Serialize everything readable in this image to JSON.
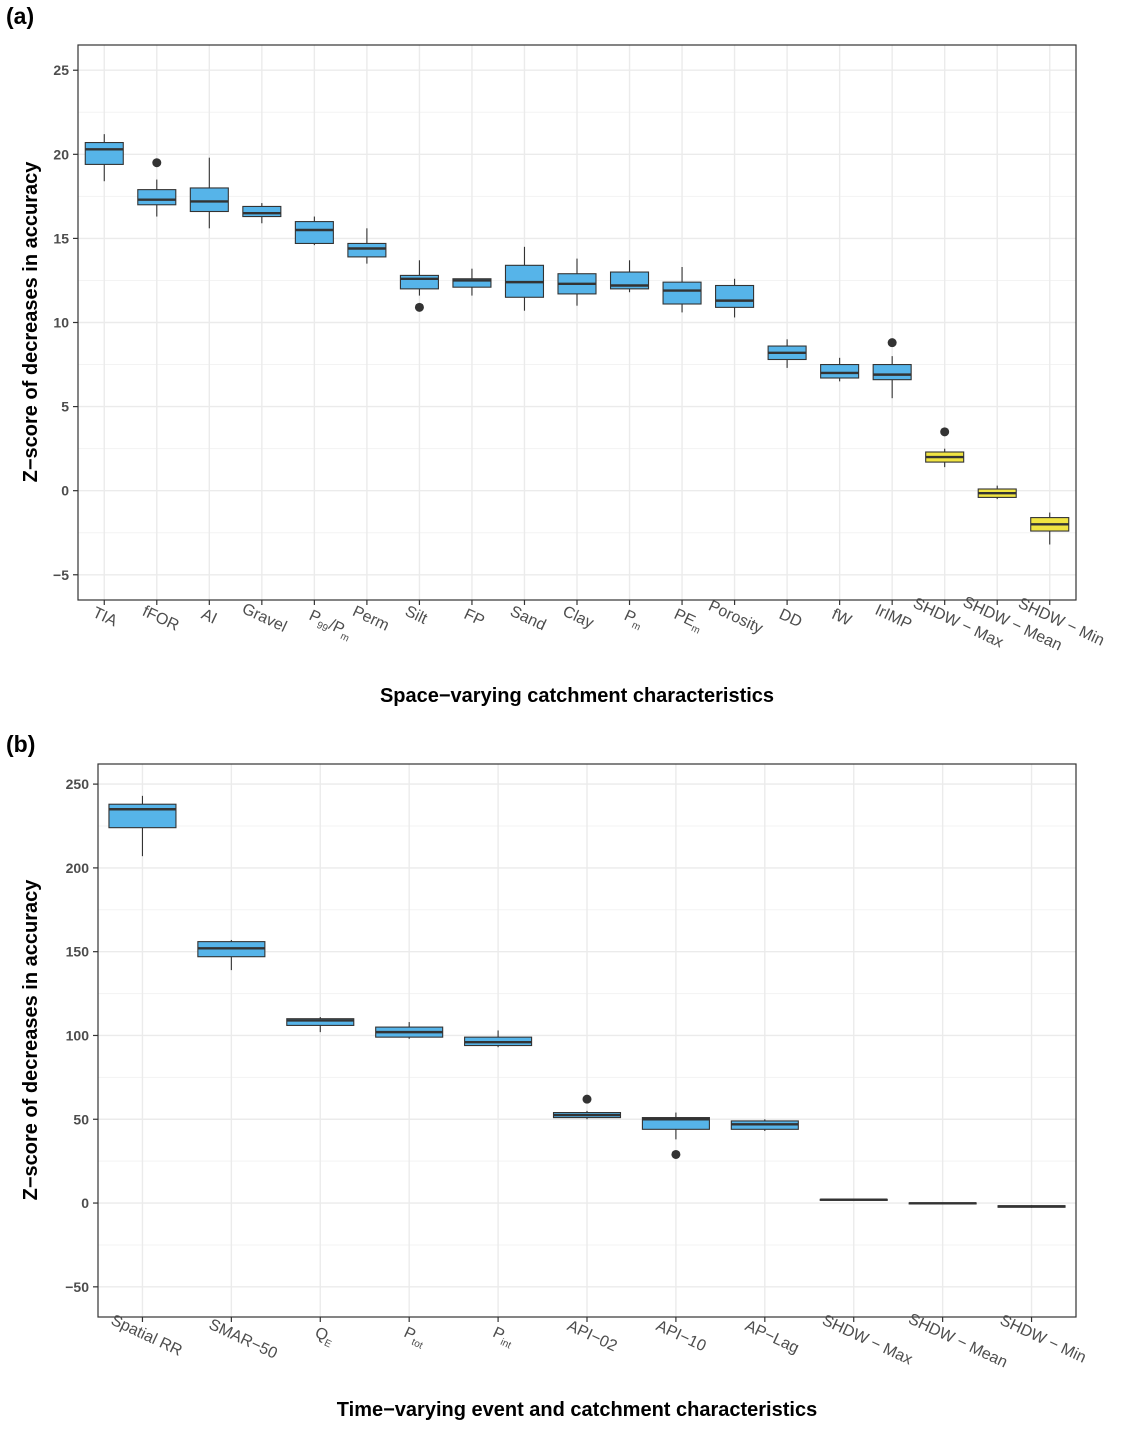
{
  "colors": {
    "box_default": "#56B4E9",
    "box_highlight": "#F0E442",
    "outline": "#333333",
    "grid": "#ebebeb",
    "panel_border": "#333333",
    "tick_text": "#4d4d4d"
  },
  "chart_data": [
    {
      "type": "box",
      "panel_label": "(a)",
      "xlabel": "Space−varying catchment characteristics",
      "ylabel": "Z−score of decreases in accuracy",
      "ylim": [
        -6.5,
        26.5
      ],
      "yticks": [
        -5,
        0,
        5,
        10,
        15,
        20,
        25
      ],
      "ytick_labels": [
        "−5",
        "0",
        "5",
        "10",
        "15",
        "20",
        "25"
      ],
      "grid": true,
      "categories": [
        {
          "label": "TIA"
        },
        {
          "label": "fFOR"
        },
        {
          "label": "AI"
        },
        {
          "label": "Gravel"
        },
        {
          "label": "P",
          "sub": "99",
          "label2": "/P",
          "sub2": "m"
        },
        {
          "label": "Perm"
        },
        {
          "label": "Silt"
        },
        {
          "label": "FP"
        },
        {
          "label": "Sand"
        },
        {
          "label": "Clay"
        },
        {
          "label": "P",
          "sub": "m"
        },
        {
          "label": "PE",
          "sub": "m"
        },
        {
          "label": "Porosity"
        },
        {
          "label": "DD"
        },
        {
          "label": "fW"
        },
        {
          "label": "IrIMP"
        },
        {
          "label": "SHDW − Max"
        },
        {
          "label": "SHDW − Mean"
        },
        {
          "label": "SHDW − Min"
        }
      ],
      "boxes": [
        {
          "min": 18.4,
          "q1": 19.4,
          "median": 20.3,
          "q3": 20.7,
          "max": 21.2,
          "outliers": [],
          "highlight": false
        },
        {
          "min": 16.3,
          "q1": 17.0,
          "median": 17.3,
          "q3": 17.9,
          "max": 18.5,
          "outliers": [
            19.5
          ],
          "highlight": false
        },
        {
          "min": 15.6,
          "q1": 16.6,
          "median": 17.2,
          "q3": 18.0,
          "max": 19.8,
          "outliers": [],
          "highlight": false
        },
        {
          "min": 15.9,
          "q1": 16.3,
          "median": 16.5,
          "q3": 16.9,
          "max": 17.1,
          "outliers": [],
          "highlight": false
        },
        {
          "min": 14.6,
          "q1": 14.7,
          "median": 15.5,
          "q3": 16.0,
          "max": 16.3,
          "outliers": [],
          "highlight": false
        },
        {
          "min": 13.5,
          "q1": 13.9,
          "median": 14.4,
          "q3": 14.7,
          "max": 15.6,
          "outliers": [],
          "highlight": false
        },
        {
          "min": 11.6,
          "q1": 12.0,
          "median": 12.6,
          "q3": 12.8,
          "max": 13.7,
          "outliers": [
            10.9
          ],
          "highlight": false
        },
        {
          "min": 11.6,
          "q1": 12.1,
          "median": 12.5,
          "q3": 12.6,
          "max": 13.2,
          "outliers": [],
          "highlight": false
        },
        {
          "min": 10.7,
          "q1": 11.5,
          "median": 12.4,
          "q3": 13.4,
          "max": 14.5,
          "outliers": [],
          "highlight": false
        },
        {
          "min": 11.0,
          "q1": 11.7,
          "median": 12.3,
          "q3": 12.9,
          "max": 13.8,
          "outliers": [],
          "highlight": false
        },
        {
          "min": 11.8,
          "q1": 12.0,
          "median": 12.2,
          "q3": 13.0,
          "max": 13.7,
          "outliers": [],
          "highlight": false
        },
        {
          "min": 10.6,
          "q1": 11.1,
          "median": 11.9,
          "q3": 12.4,
          "max": 13.3,
          "outliers": [],
          "highlight": false
        },
        {
          "min": 10.3,
          "q1": 10.9,
          "median": 11.3,
          "q3": 12.2,
          "max": 12.6,
          "outliers": [],
          "highlight": false
        },
        {
          "min": 7.3,
          "q1": 7.8,
          "median": 8.2,
          "q3": 8.6,
          "max": 9.0,
          "outliers": [],
          "highlight": false
        },
        {
          "min": 6.5,
          "q1": 6.7,
          "median": 7.0,
          "q3": 7.5,
          "max": 7.9,
          "outliers": [],
          "highlight": false
        },
        {
          "min": 5.5,
          "q1": 6.6,
          "median": 6.9,
          "q3": 7.5,
          "max": 8.0,
          "outliers": [
            8.8
          ],
          "highlight": false
        },
        {
          "min": 1.4,
          "q1": 1.7,
          "median": 2.0,
          "q3": 2.3,
          "max": 2.5,
          "outliers": [
            3.5
          ],
          "highlight": true
        },
        {
          "min": -0.5,
          "q1": -0.4,
          "median": -0.15,
          "q3": 0.1,
          "max": 0.3,
          "outliers": [],
          "highlight": true
        },
        {
          "min": -3.2,
          "q1": -2.4,
          "median": -2.0,
          "q3": -1.6,
          "max": -1.3,
          "outliers": [],
          "highlight": true
        }
      ]
    },
    {
      "type": "box",
      "panel_label": "(b)",
      "xlabel": "Time−varying event and catchment characteristics",
      "ylabel": "Z−score of decreases in accuracy",
      "ylim": [
        -68,
        262
      ],
      "yticks": [
        -50,
        0,
        50,
        100,
        150,
        200,
        250
      ],
      "ytick_labels": [
        "−50",
        "0",
        "50",
        "100",
        "150",
        "200",
        "250"
      ],
      "grid": true,
      "categories": [
        {
          "label": "Spatial RR"
        },
        {
          "label": "SMAR−50"
        },
        {
          "label": "Q",
          "sub": "E"
        },
        {
          "label": "P",
          "sub": "tot"
        },
        {
          "label": "P",
          "sub": "int"
        },
        {
          "label": "API−02"
        },
        {
          "label": "API−10"
        },
        {
          "label": "AP−Lag"
        },
        {
          "label": "SHDW − Max"
        },
        {
          "label": "SHDW − Mean"
        },
        {
          "label": "SHDW − Min"
        }
      ],
      "boxes": [
        {
          "min": 207,
          "q1": 224,
          "median": 235,
          "q3": 238,
          "max": 243,
          "outliers": [],
          "highlight": false
        },
        {
          "min": 139,
          "q1": 147,
          "median": 152,
          "q3": 156,
          "max": 157,
          "outliers": [],
          "highlight": false
        },
        {
          "min": 102,
          "q1": 106,
          "median": 109,
          "q3": 110,
          "max": 111,
          "outliers": [],
          "highlight": false
        },
        {
          "min": 98,
          "q1": 99,
          "median": 102,
          "q3": 105,
          "max": 108,
          "outliers": [],
          "highlight": false
        },
        {
          "min": 93,
          "q1": 94,
          "median": 96,
          "q3": 99,
          "max": 103,
          "outliers": [],
          "highlight": false
        },
        {
          "min": 50,
          "q1": 51,
          "median": 52.5,
          "q3": 54,
          "max": 55,
          "outliers": [
            62
          ],
          "highlight": false
        },
        {
          "min": 38,
          "q1": 44,
          "median": 50,
          "q3": 51,
          "max": 54,
          "outliers": [
            29
          ],
          "highlight": false
        },
        {
          "min": 43,
          "q1": 44,
          "median": 47,
          "q3": 49,
          "max": 50,
          "outliers": [],
          "highlight": false
        },
        {
          "min": 1.7,
          "q1": 1.9,
          "median": 2.0,
          "q3": 2.2,
          "max": 2.4,
          "outliers": [],
          "highlight": false
        },
        {
          "min": -0.5,
          "q1": -0.3,
          "median": -0.15,
          "q3": 0.1,
          "max": 0.3,
          "outliers": [],
          "highlight": false
        },
        {
          "min": -2.8,
          "q1": -2.5,
          "median": -2.0,
          "q3": -1.6,
          "max": -1.3,
          "outliers": [],
          "highlight": false
        }
      ]
    }
  ]
}
